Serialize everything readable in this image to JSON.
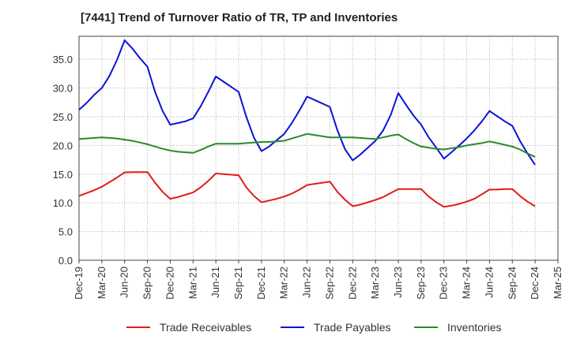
{
  "chart_data": {
    "type": "line",
    "title": "[7441]  Trend of Turnover Ratio of TR, TP and Inventories",
    "xlabel": "",
    "ylabel": "",
    "ylim": [
      0,
      39
    ],
    "yticks": [
      "0.0",
      "5.0",
      "10.0",
      "15.0",
      "20.0",
      "25.0",
      "30.0",
      "35.0"
    ],
    "ytick_values": [
      0,
      5,
      10,
      15,
      20,
      25,
      30,
      35
    ],
    "x_tick_labels": [
      "Dec-19",
      "Mar-20",
      "Jun-20",
      "Sep-20",
      "Dec-20",
      "Mar-21",
      "Jun-21",
      "Sep-21",
      "Dec-21",
      "Mar-22",
      "Jun-22",
      "Sep-22",
      "Dec-22",
      "Mar-23",
      "Jun-23",
      "Sep-23",
      "Dec-23",
      "Mar-24",
      "Jun-24",
      "Sep-24",
      "Dec-24",
      "Mar-25"
    ],
    "x": [
      "Dec-19",
      "Jan-20",
      "Feb-20",
      "Mar-20",
      "Apr-20",
      "May-20",
      "Jun-20",
      "Jul-20",
      "Aug-20",
      "Sep-20",
      "Oct-20",
      "Nov-20",
      "Dec-20",
      "Jan-21",
      "Feb-21",
      "Mar-21",
      "Apr-21",
      "May-21",
      "Jun-21",
      "Jul-21",
      "Aug-21",
      "Sep-21",
      "Oct-21",
      "Nov-21",
      "Dec-21",
      "Jan-22",
      "Feb-22",
      "Mar-22",
      "Apr-22",
      "May-22",
      "Jun-22",
      "Jul-22",
      "Aug-22",
      "Sep-22",
      "Oct-22",
      "Nov-22",
      "Dec-22",
      "Jan-23",
      "Feb-23",
      "Mar-23",
      "Apr-23",
      "May-23",
      "Jun-23",
      "Jul-23",
      "Aug-23",
      "Sep-23",
      "Oct-23",
      "Nov-23",
      "Dec-23",
      "Jan-24",
      "Feb-24",
      "Mar-24",
      "Apr-24",
      "May-24",
      "Jun-24",
      "Jul-24",
      "Aug-24",
      "Sep-24",
      "Oct-24",
      "Nov-24",
      "Dec-24"
    ],
    "grid": true,
    "legend_position": "bottom",
    "series": [
      {
        "name": "Trade Receivables",
        "color": "#e31a1c",
        "values": [
          11.2,
          11.7,
          12.2,
          12.8,
          13.6,
          14.4,
          15.3,
          15.35,
          15.35,
          15.35,
          13.5,
          11.9,
          10.7,
          11.0,
          11.4,
          11.8,
          12.7,
          13.8,
          15.1,
          15.0,
          14.9,
          14.8,
          12.7,
          11.2,
          10.1,
          10.4,
          10.7,
          11.1,
          11.6,
          12.3,
          13.1,
          13.3,
          13.5,
          13.7,
          11.9,
          10.5,
          9.4,
          9.7,
          10.1,
          10.5,
          11.0,
          11.7,
          12.4,
          12.4,
          12.4,
          12.4,
          11.1,
          10.1,
          9.3,
          9.5,
          9.8,
          10.2,
          10.7,
          11.5,
          12.3,
          12.3,
          12.4,
          12.4,
          11.2,
          10.2,
          9.4
        ]
      },
      {
        "name": "Trade Payables",
        "color": "#0a14d6",
        "values": [
          26.2,
          27.4,
          28.8,
          30.0,
          32.1,
          34.9,
          38.3,
          36.9,
          35.2,
          33.7,
          29.3,
          26.0,
          23.6,
          23.9,
          24.2,
          24.7,
          26.8,
          29.3,
          32.0,
          31.1,
          30.2,
          29.3,
          25.0,
          21.4,
          19.0,
          19.8,
          20.9,
          22.0,
          23.9,
          26.1,
          28.5,
          27.9,
          27.3,
          26.7,
          22.6,
          19.3,
          17.4,
          18.4,
          19.6,
          20.8,
          22.6,
          25.3,
          29.1,
          27.1,
          25.2,
          23.6,
          21.4,
          19.6,
          17.7,
          18.8,
          20.0,
          21.2,
          22.6,
          24.2,
          26.0,
          25.1,
          24.2,
          23.4,
          20.8,
          18.6,
          16.6
        ]
      },
      {
        "name": "Inventories",
        "color": "#2a8a2a",
        "values": [
          21.1,
          21.2,
          21.3,
          21.4,
          21.3,
          21.2,
          21.0,
          20.8,
          20.5,
          20.2,
          19.8,
          19.4,
          19.1,
          18.9,
          18.8,
          18.7,
          19.2,
          19.8,
          20.3,
          20.3,
          20.3,
          20.3,
          20.4,
          20.5,
          20.6,
          20.6,
          20.7,
          20.8,
          21.2,
          21.6,
          22.0,
          21.8,
          21.6,
          21.4,
          21.4,
          21.4,
          21.4,
          21.3,
          21.2,
          21.1,
          21.4,
          21.7,
          21.9,
          21.1,
          20.4,
          19.8,
          19.6,
          19.4,
          19.3,
          19.5,
          19.7,
          20.0,
          20.2,
          20.4,
          20.7,
          20.4,
          20.1,
          19.8,
          19.3,
          18.6,
          18.0
        ]
      }
    ]
  }
}
